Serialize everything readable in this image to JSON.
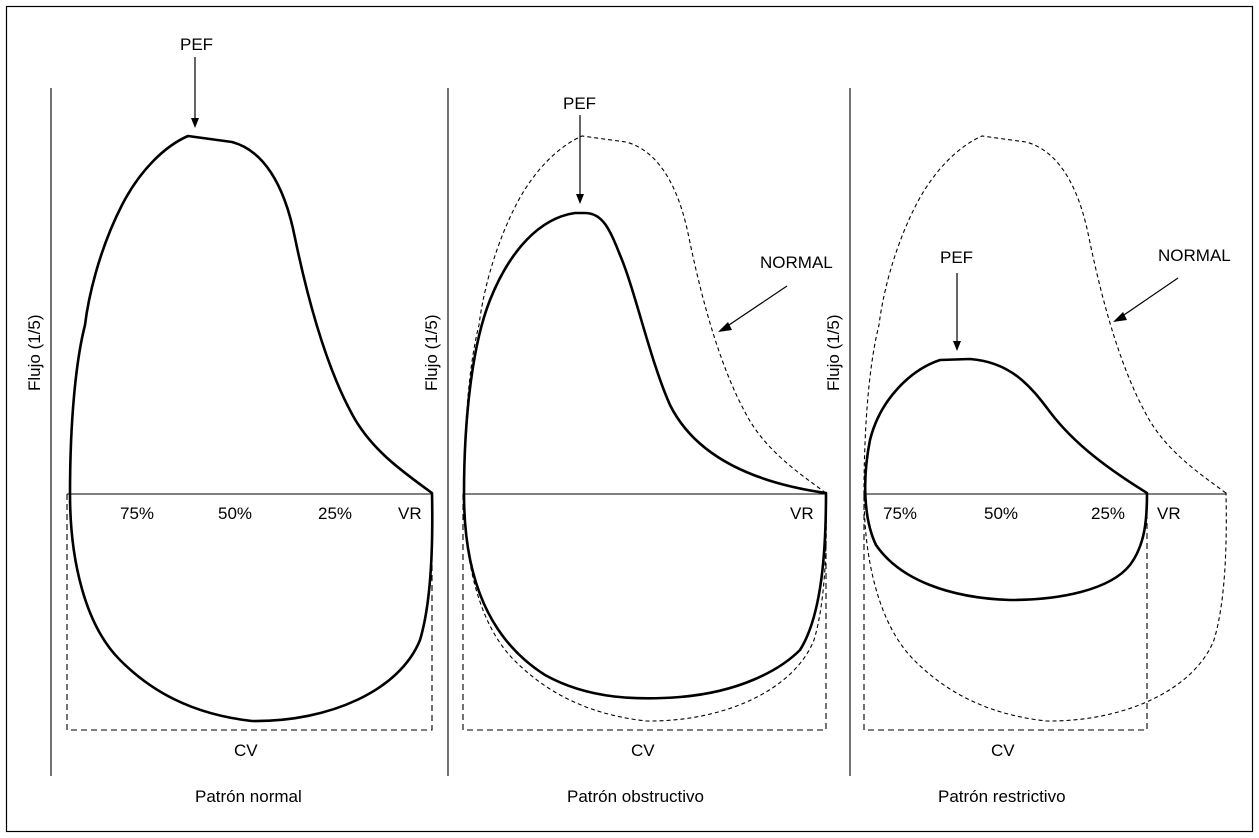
{
  "panels": [
    {
      "caption": "Patrón normal",
      "y_axis_label": "Flujo (1/5)",
      "x_axis_label": "CV",
      "pef_label": "PEF",
      "rv_label": "VR",
      "percent_labels": [
        "75%",
        "50%",
        "25%"
      ]
    },
    {
      "caption": "Patrón obstructivo",
      "y_axis_label": "Flujo (1/5)",
      "x_axis_label": "CV",
      "pef_label": "PEF",
      "rv_label": "VR",
      "normal_label": "NORMAL"
    },
    {
      "caption": "Patrón restrictivo",
      "y_axis_label": "Flujo (1/5)",
      "x_axis_label": "CV",
      "pef_label": "PEF",
      "rv_label": "VR",
      "normal_label": "NORMAL",
      "percent_labels": [
        "75%",
        "50%",
        "25%"
      ]
    }
  ]
}
